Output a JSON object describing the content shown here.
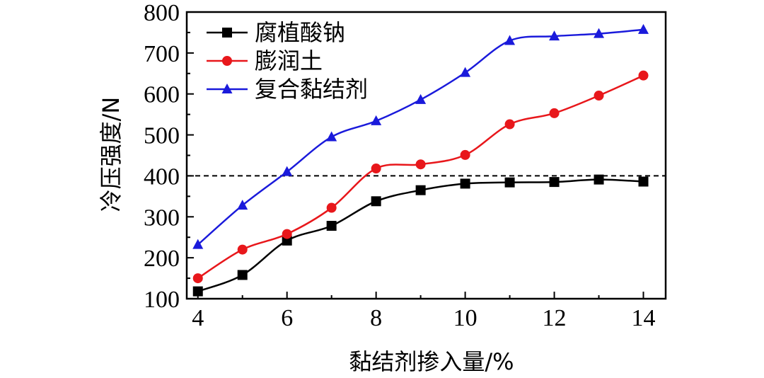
{
  "chart_data": {
    "type": "line",
    "xlabel": "黏结剂掺入量/%",
    "ylabel": "冷压强度/N",
    "xlim": [
      3.75,
      14.5
    ],
    "ylim": [
      100,
      800
    ],
    "xticks": [
      4,
      6,
      8,
      10,
      12,
      14
    ],
    "yticks": [
      100,
      200,
      300,
      400,
      500,
      600,
      700,
      800
    ],
    "reference_line": {
      "y": 400,
      "style": "dashed",
      "color": "#000000"
    },
    "legend_position": "top-left",
    "x": [
      4,
      5,
      6,
      7,
      8,
      9,
      10,
      11,
      12,
      13,
      14
    ],
    "series": [
      {
        "name": "腐植酸钠",
        "marker": "square",
        "color": "#000000",
        "values": [
          118,
          158,
          242,
          278,
          338,
          365,
          381,
          384,
          385,
          391,
          386
        ]
      },
      {
        "name": "膨润土",
        "marker": "circle",
        "color": "#e8171b",
        "values": [
          150,
          220,
          258,
          322,
          418,
          428,
          451,
          526,
          553,
          596,
          645
        ]
      },
      {
        "name": "复合黏结剂",
        "marker": "triangle",
        "color": "#1a1adb",
        "values": [
          232,
          328,
          410,
          495,
          534,
          586,
          652,
          730,
          741,
          747,
          757
        ]
      }
    ]
  }
}
